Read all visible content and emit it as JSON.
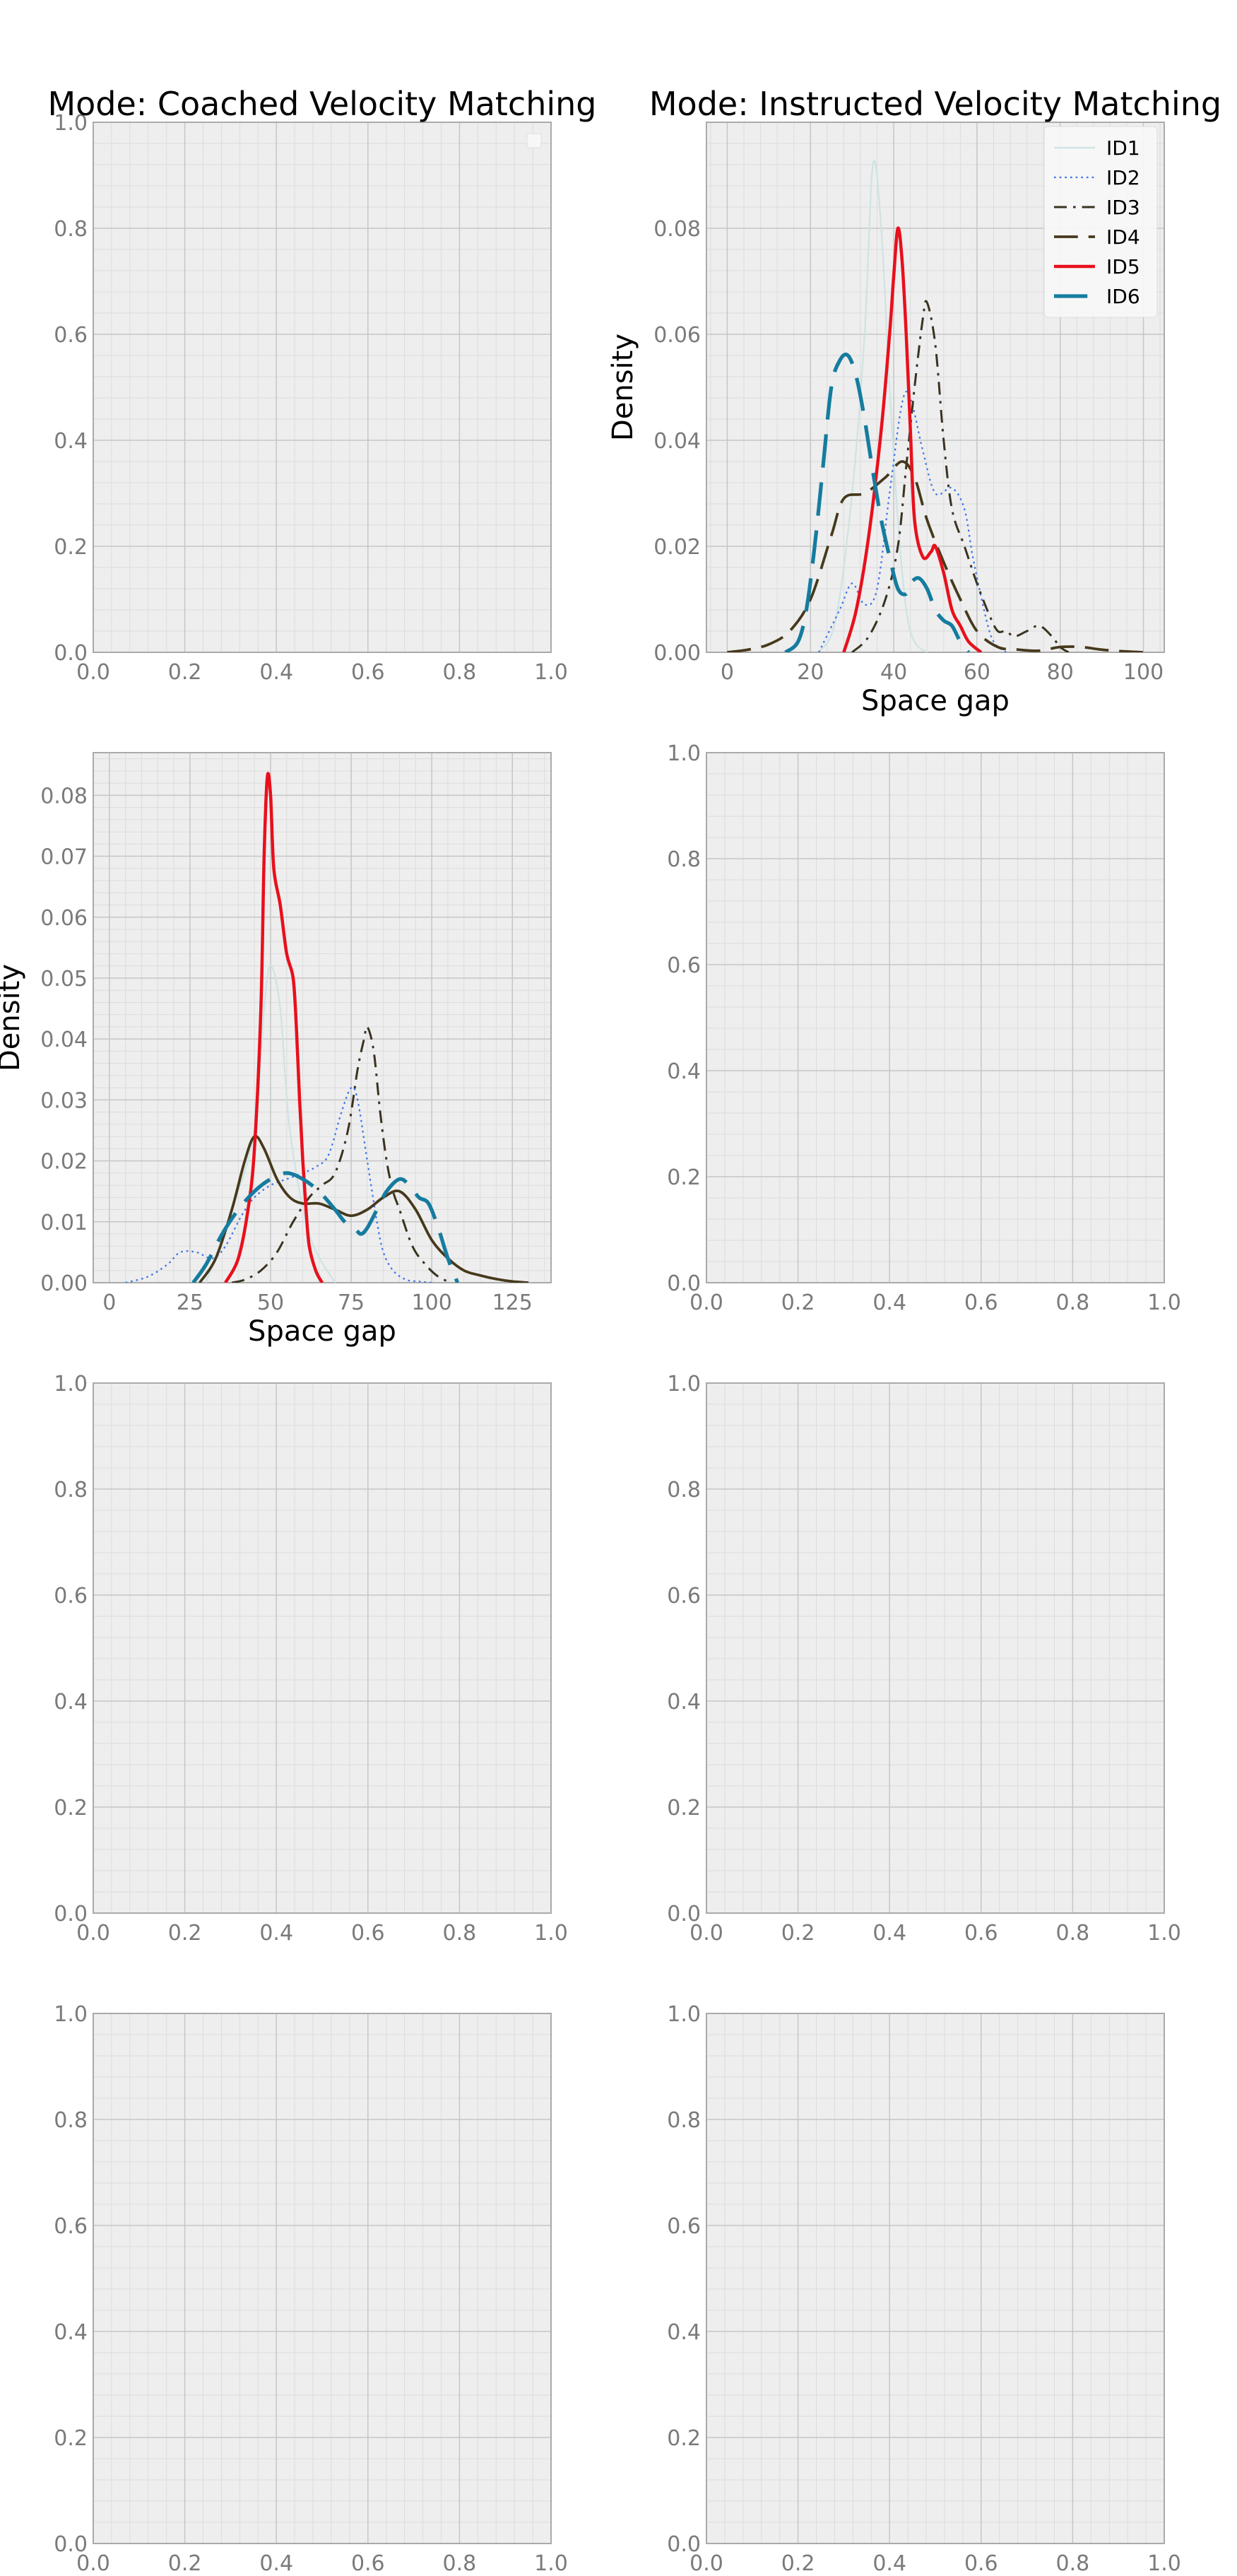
{
  "chart_data": [
    {
      "type": "line",
      "panel": "row1-left",
      "title": "Mode: Coached Velocity Matching",
      "xlabel": "",
      "ylabel": "",
      "xlim": [
        0,
        1
      ],
      "ylim": [
        0,
        1
      ],
      "xticks": [
        0.0,
        0.2,
        0.4,
        0.6,
        0.8,
        1.0
      ],
      "yticks": [
        0.0,
        0.2,
        0.4,
        0.6,
        0.8,
        1.0
      ],
      "grid": true,
      "legend": "top-right (empty)",
      "series": []
    },
    {
      "type": "line",
      "panel": "row1-right",
      "title": "Mode: Instructed Velocity Matching",
      "xlabel": "Space gap",
      "ylabel": "Density",
      "xlim": [
        -5,
        105
      ],
      "ylim": [
        0,
        0.1
      ],
      "xticks": [
        0,
        20,
        40,
        60,
        80,
        100
      ],
      "yticks": [
        0.0,
        0.02,
        0.04,
        0.06,
        0.08
      ],
      "grid": true,
      "legend": "top-right",
      "series": [
        {
          "name": "ID1",
          "color": "#cfe3e3",
          "style": "solid",
          "width": 1.5,
          "x": [
            22,
            26,
            30,
            33,
            35,
            37,
            39,
            41,
            43,
            45,
            48
          ],
          "y": [
            0.0,
            0.006,
            0.03,
            0.06,
            0.092,
            0.08,
            0.05,
            0.025,
            0.008,
            0.002,
            0.0
          ]
        },
        {
          "name": "ID2",
          "color": "#3d75e8",
          "style": "dotted",
          "width": 1.5,
          "x": [
            22,
            27,
            30,
            33,
            36,
            39,
            42,
            44,
            47,
            50,
            54,
            57,
            59,
            62,
            64,
            67
          ],
          "y": [
            0.0,
            0.008,
            0.013,
            0.009,
            0.012,
            0.03,
            0.047,
            0.048,
            0.038,
            0.03,
            0.031,
            0.027,
            0.018,
            0.007,
            0.002,
            0.0
          ]
        },
        {
          "name": "ID3",
          "color": "#3a3320",
          "style": "dashdot",
          "width": 2,
          "x": [
            30,
            34,
            38,
            41,
            43,
            45,
            47,
            48,
            50,
            52,
            54,
            57,
            60,
            63,
            65,
            67,
            69,
            72,
            75,
            78,
            80,
            82
          ],
          "y": [
            0.0,
            0.003,
            0.01,
            0.02,
            0.035,
            0.05,
            0.063,
            0.066,
            0.058,
            0.04,
            0.027,
            0.02,
            0.013,
            0.007,
            0.004,
            0.004,
            0.003,
            0.004,
            0.005,
            0.003,
            0.001,
            0.0
          ]
        },
        {
          "name": "ID4",
          "color": "#46391c",
          "style": "longdash",
          "width": 2.5,
          "x": [
            0,
            5,
            10,
            15,
            20,
            25,
            28,
            33,
            38,
            42,
            45,
            48,
            52,
            56,
            60,
            65,
            70,
            75,
            80,
            85,
            90,
            95,
            100
          ],
          "y": [
            0.0,
            0.0005,
            0.0015,
            0.004,
            0.01,
            0.022,
            0.029,
            0.03,
            0.033,
            0.036,
            0.033,
            0.025,
            0.017,
            0.01,
            0.004,
            0.001,
            0.0005,
            0.0003,
            0.001,
            0.001,
            0.0005,
            0.0002,
            0.0
          ]
        },
        {
          "name": "ID5",
          "color": "#e8101c",
          "style": "solid",
          "width": 3,
          "x": [
            28,
            31,
            34,
            37,
            39,
            40,
            41,
            42,
            43,
            44,
            45,
            47,
            49,
            50,
            52,
            54,
            56,
            58,
            61
          ],
          "y": [
            0.0,
            0.008,
            0.022,
            0.042,
            0.06,
            0.071,
            0.08,
            0.074,
            0.06,
            0.042,
            0.025,
            0.018,
            0.019,
            0.02,
            0.015,
            0.008,
            0.005,
            0.002,
            0.0
          ]
        },
        {
          "name": "ID6",
          "color": "#157c9f",
          "style": "longdash",
          "width": 3.5,
          "x": [
            14,
            17,
            19,
            21,
            23,
            25,
            27,
            29,
            31,
            33,
            35,
            37,
            39,
            41,
            43,
            44,
            46,
            48,
            50,
            52,
            54,
            56,
            58
          ],
          "y": [
            0.0,
            0.002,
            0.008,
            0.02,
            0.035,
            0.05,
            0.055,
            0.056,
            0.052,
            0.044,
            0.034,
            0.025,
            0.018,
            0.012,
            0.011,
            0.013,
            0.014,
            0.012,
            0.008,
            0.006,
            0.005,
            0.002,
            0.0
          ]
        }
      ]
    },
    {
      "type": "line",
      "panel": "row2-left",
      "title": "",
      "xlabel": "Space gap",
      "ylabel": "Density",
      "xlim": [
        -5,
        137
      ],
      "ylim": [
        0,
        0.087
      ],
      "xticks": [
        0,
        25,
        50,
        75,
        100,
        125
      ],
      "yticks": [
        0.0,
        0.01,
        0.02,
        0.03,
        0.04,
        0.05,
        0.06,
        0.07,
        0.08
      ],
      "grid": true,
      "legend": "",
      "series": [
        {
          "name": "ID1",
          "color": "#cfe3e3",
          "style": "solid",
          "width": 1.5,
          "x": [
            30,
            38,
            45,
            48,
            50,
            53,
            56,
            62,
            70
          ],
          "y": [
            0.0,
            0.012,
            0.025,
            0.045,
            0.052,
            0.045,
            0.025,
            0.008,
            0.0
          ]
        },
        {
          "name": "ID2",
          "color": "#3d75e8",
          "style": "dotted",
          "width": 1.5,
          "x": [
            5,
            12,
            18,
            22,
            27,
            32,
            36,
            41,
            45,
            50,
            55,
            60,
            64,
            68,
            72,
            75,
            77,
            80,
            83,
            85,
            88,
            92,
            96,
            100
          ],
          "y": [
            0.0,
            0.001,
            0.003,
            0.005,
            0.005,
            0.004,
            0.006,
            0.011,
            0.014,
            0.016,
            0.017,
            0.018,
            0.019,
            0.021,
            0.028,
            0.032,
            0.03,
            0.02,
            0.01,
            0.005,
            0.002,
            0.0005,
            0.0002,
            0.0
          ]
        },
        {
          "name": "ID3",
          "color": "#3a3320",
          "style": "dashdot",
          "width": 2,
          "x": [
            38,
            42,
            47,
            52,
            57,
            62,
            66,
            70,
            74,
            77,
            79,
            80,
            82,
            84,
            86,
            88,
            90,
            94,
            98,
            102,
            106
          ],
          "y": [
            0.0,
            0.0005,
            0.002,
            0.005,
            0.01,
            0.014,
            0.016,
            0.018,
            0.025,
            0.035,
            0.04,
            0.042,
            0.038,
            0.028,
            0.02,
            0.015,
            0.012,
            0.006,
            0.003,
            0.001,
            0.0
          ]
        },
        {
          "name": "ID4",
          "color": "#46391c",
          "style": "solid",
          "width": 2.5,
          "x": [
            28,
            33,
            38,
            42,
            45,
            48,
            52,
            56,
            60,
            65,
            70,
            75,
            80,
            85,
            90,
            95,
            100,
            105,
            110,
            115,
            120,
            125,
            130
          ],
          "y": [
            0.0,
            0.004,
            0.012,
            0.02,
            0.024,
            0.022,
            0.017,
            0.014,
            0.013,
            0.013,
            0.012,
            0.011,
            0.012,
            0.014,
            0.015,
            0.012,
            0.007,
            0.004,
            0.002,
            0.0012,
            0.0006,
            0.0002,
            0.0
          ]
        },
        {
          "name": "ID5",
          "color": "#e8101c",
          "style": "solid",
          "width": 3,
          "x": [
            36,
            40,
            43,
            45,
            47,
            48,
            49,
            50,
            51,
            53,
            55,
            57,
            58,
            59,
            60,
            61,
            62,
            64,
            66
          ],
          "y": [
            0.0,
            0.004,
            0.012,
            0.022,
            0.045,
            0.07,
            0.083,
            0.08,
            0.068,
            0.062,
            0.054,
            0.05,
            0.042,
            0.03,
            0.02,
            0.012,
            0.006,
            0.002,
            0.0
          ]
        },
        {
          "name": "ID6",
          "color": "#157c9f",
          "style": "longdash",
          "width": 3.5,
          "x": [
            26,
            30,
            35,
            40,
            45,
            50,
            55,
            60,
            65,
            70,
            73,
            76,
            78,
            80,
            83,
            86,
            90,
            93,
            96,
            99,
            102,
            105,
            108
          ],
          "y": [
            0.0,
            0.003,
            0.008,
            0.012,
            0.015,
            0.017,
            0.018,
            0.017,
            0.015,
            0.012,
            0.01,
            0.009,
            0.008,
            0.009,
            0.012,
            0.015,
            0.017,
            0.016,
            0.014,
            0.013,
            0.009,
            0.004,
            0.0
          ]
        }
      ]
    },
    {
      "type": "line",
      "panel": "row2-right",
      "title": "",
      "xlabel": "",
      "ylabel": "",
      "xlim": [
        0,
        1
      ],
      "ylim": [
        0,
        1
      ],
      "xticks": [
        0.0,
        0.2,
        0.4,
        0.6,
        0.8,
        1.0
      ],
      "yticks": [
        0.0,
        0.2,
        0.4,
        0.6,
        0.8,
        1.0
      ],
      "grid": true,
      "legend": "",
      "series": []
    },
    {
      "type": "line",
      "panel": "row3-left",
      "title": "",
      "xlabel": "",
      "ylabel": "",
      "xlim": [
        0,
        1
      ],
      "ylim": [
        0,
        1
      ],
      "xticks": [
        0.0,
        0.2,
        0.4,
        0.6,
        0.8,
        1.0
      ],
      "yticks": [
        0.0,
        0.2,
        0.4,
        0.6,
        0.8,
        1.0
      ],
      "grid": true,
      "legend": "",
      "series": []
    },
    {
      "type": "line",
      "panel": "row3-right",
      "title": "",
      "xlabel": "",
      "ylabel": "",
      "xlim": [
        0,
        1
      ],
      "ylim": [
        0,
        1
      ],
      "xticks": [
        0.0,
        0.2,
        0.4,
        0.6,
        0.8,
        1.0
      ],
      "yticks": [
        0.0,
        0.2,
        0.4,
        0.6,
        0.8,
        1.0
      ],
      "grid": true,
      "legend": "",
      "series": []
    },
    {
      "type": "line",
      "panel": "row4-left",
      "title": "",
      "xlabel": "",
      "ylabel": "",
      "xlim": [
        0,
        1
      ],
      "ylim": [
        0,
        1
      ],
      "xticks": [
        0.0,
        0.2,
        0.4,
        0.6,
        0.8,
        1.0
      ],
      "yticks": [
        0.0,
        0.2,
        0.4,
        0.6,
        0.8,
        1.0
      ],
      "grid": true,
      "legend": "",
      "series": []
    },
    {
      "type": "line",
      "panel": "row4-right",
      "title": "",
      "xlabel": "",
      "ylabel": "",
      "xlim": [
        0,
        1
      ],
      "ylim": [
        0,
        1
      ],
      "xticks": [
        0.0,
        0.2,
        0.4,
        0.6,
        0.8,
        1.0
      ],
      "yticks": [
        0.0,
        0.2,
        0.4,
        0.6,
        0.8,
        1.0
      ],
      "grid": true,
      "legend": "",
      "series": []
    }
  ]
}
